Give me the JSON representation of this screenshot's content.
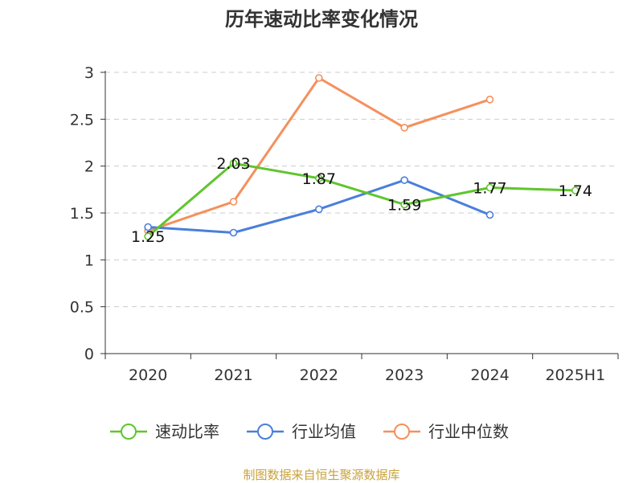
{
  "chart_data": {
    "type": "line",
    "title": "历年速动比率变化情况",
    "categories": [
      "2020",
      "2021",
      "2022",
      "2023",
      "2024",
      "2025H1"
    ],
    "ylim": [
      0,
      3
    ],
    "yticks": [
      "0",
      "0.5",
      "1",
      "1.5",
      "2",
      "2.5",
      "3"
    ],
    "grid": true,
    "legend_position": "bottom",
    "series": [
      {
        "name": "速动比率",
        "color": "#5fc52e",
        "values": [
          1.25,
          2.03,
          1.87,
          1.59,
          1.77,
          1.74
        ],
        "labels": [
          "1.25",
          "2.03",
          "1.87",
          "1.59",
          "1.77",
          "1.74"
        ]
      },
      {
        "name": "行业均值",
        "color": "#4a7fdb",
        "values": [
          1.35,
          1.29,
          1.54,
          1.85,
          1.48,
          null
        ]
      },
      {
        "name": "行业中位数",
        "color": "#f5905c",
        "values": [
          1.31,
          1.62,
          2.94,
          2.41,
          2.71,
          null
        ]
      }
    ]
  },
  "footer": {
    "source": "制图数据来自恒生聚源数据库"
  }
}
